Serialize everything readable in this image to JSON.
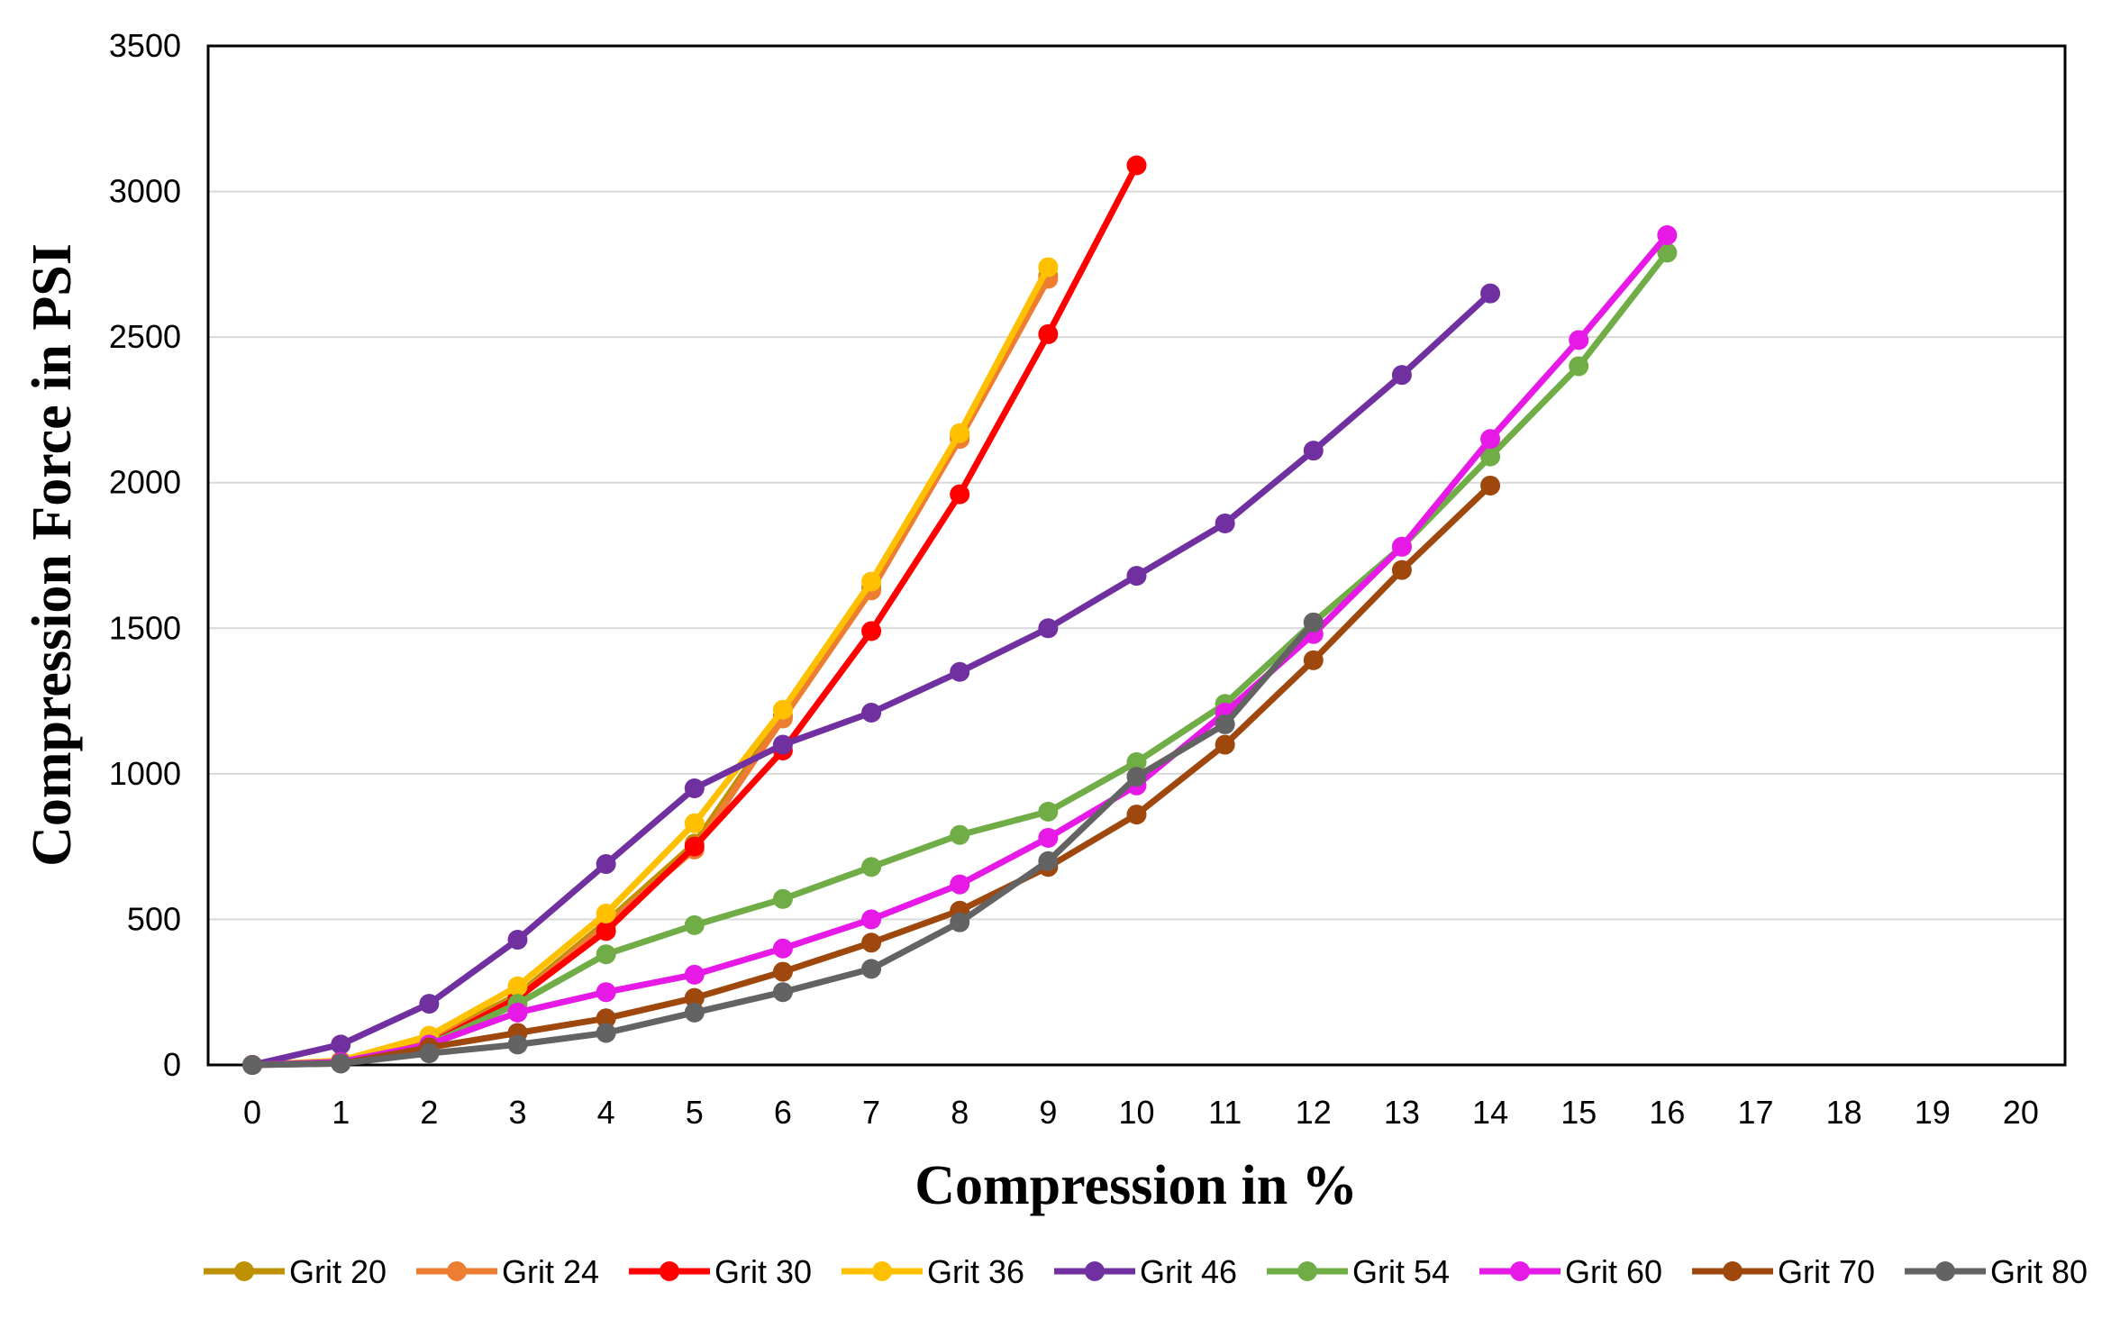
{
  "chart_data": {
    "type": "line",
    "title": "",
    "xlabel": "Compression in %",
    "ylabel": "Compression Force in PSI",
    "xlim": [
      -0.5,
      20.5
    ],
    "ylim": [
      0,
      3500
    ],
    "x_ticks": [
      "0",
      "1",
      "2",
      "3",
      "4",
      "5",
      "6",
      "7",
      "8",
      "9",
      "10",
      "11",
      "12",
      "13",
      "14",
      "15",
      "16",
      "17",
      "18",
      "19",
      "20"
    ],
    "y_ticks": [
      "0",
      "500",
      "1000",
      "1500",
      "2000",
      "2500",
      "3000",
      "3500"
    ],
    "grid": "horizontal",
    "legend_position": "bottom",
    "series": [
      {
        "name": "Grit 20",
        "color": "#BF9000",
        "x": [
          0,
          1,
          2,
          3,
          4,
          5,
          6,
          7,
          8,
          9
        ],
        "values": [
          0,
          10,
          85,
          240,
          490,
          760,
          1200,
          1640,
          2160,
          2710
        ]
      },
      {
        "name": "Grit 24",
        "color": "#ED7D31",
        "x": [
          0,
          1,
          2,
          3,
          4,
          5,
          6,
          7,
          8,
          9
        ],
        "values": [
          0,
          10,
          80,
          230,
          480,
          740,
          1190,
          1630,
          2150,
          2700
        ]
      },
      {
        "name": "Grit 30",
        "color": "#FF0000",
        "x": [
          0,
          1,
          2,
          3,
          4,
          5,
          6,
          7,
          8,
          9,
          10
        ],
        "values": [
          0,
          10,
          70,
          230,
          460,
          750,
          1080,
          1490,
          1960,
          2510,
          3090
        ]
      },
      {
        "name": "Grit 36",
        "color": "#FFC000",
        "x": [
          0,
          1,
          2,
          3,
          4,
          5,
          6,
          7,
          8,
          9
        ],
        "values": [
          0,
          15,
          100,
          270,
          520,
          830,
          1220,
          1660,
          2170,
          2740
        ]
      },
      {
        "name": "Grit 46",
        "color": "#7030A0",
        "x": [
          0,
          1,
          2,
          3,
          4,
          5,
          6,
          7,
          8,
          9,
          10,
          11,
          12,
          13,
          14
        ],
        "values": [
          0,
          70,
          210,
          430,
          690,
          950,
          1100,
          1210,
          1350,
          1500,
          1680,
          1860,
          2110,
          2370,
          2650
        ]
      },
      {
        "name": "Grit 54",
        "color": "#70AD47",
        "x": [
          0,
          1,
          2,
          3,
          4,
          5,
          6,
          7,
          8,
          9,
          10,
          11,
          12,
          13,
          14,
          15,
          16
        ],
        "values": [
          0,
          10,
          70,
          210,
          380,
          480,
          570,
          680,
          790,
          870,
          1040,
          1240,
          1520,
          1780,
          2090,
          2400,
          2790
        ]
      },
      {
        "name": "Grit 60",
        "color": "#E619E6",
        "x": [
          0,
          1,
          2,
          3,
          4,
          5,
          6,
          7,
          8,
          9,
          10,
          11,
          12,
          13,
          14,
          15,
          16
        ],
        "values": [
          0,
          10,
          70,
          180,
          250,
          310,
          400,
          500,
          620,
          780,
          960,
          1210,
          1480,
          1780,
          2150,
          2490,
          2850
        ]
      },
      {
        "name": "Grit 70",
        "color": "#9E480E",
        "x": [
          0,
          1,
          2,
          3,
          4,
          5,
          6,
          7,
          8,
          9,
          10,
          11,
          12,
          13,
          14
        ],
        "values": [
          0,
          5,
          60,
          110,
          160,
          230,
          320,
          420,
          530,
          680,
          860,
          1100,
          1390,
          1700,
          1990
        ]
      },
      {
        "name": "Grit 80",
        "color": "#636363",
        "x": [
          0,
          1,
          2,
          3,
          4,
          5,
          6,
          7,
          8,
          9,
          10,
          11,
          12
        ],
        "values": [
          0,
          5,
          40,
          70,
          110,
          180,
          250,
          330,
          490,
          700,
          990,
          1170,
          1520
        ]
      }
    ]
  }
}
